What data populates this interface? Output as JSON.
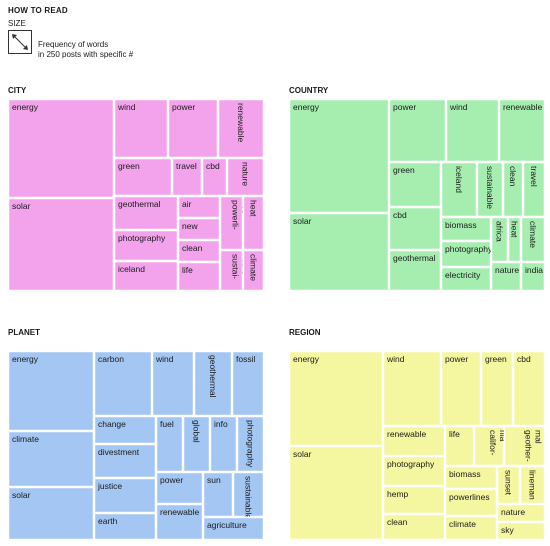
{
  "legend": {
    "title": "HOW TO READ",
    "size_label": "SIZE",
    "description": [
      "Frequency of words",
      "in 250 posts with specific #"
    ]
  },
  "chart_data": [
    {
      "type": "treemap",
      "title": "CITY",
      "color": "#f3a3ec",
      "value_note": "relative word frequency (approximate, read from area)",
      "items": [
        {
          "label": "energy",
          "value": 10.5
        },
        {
          "label": "solar",
          "value": 9.3
        },
        {
          "label": "wind",
          "value": 3.3
        },
        {
          "label": "power",
          "value": 3.3
        },
        {
          "label": "renewable",
          "value": 2.9
        },
        {
          "label": "green",
          "value": 2.0
        },
        {
          "label": "travel",
          "value": 1.2
        },
        {
          "label": "cbd",
          "value": 1.1
        },
        {
          "label": "nature",
          "value": 1.1
        },
        {
          "label": "geothermal",
          "value": 1.9
        },
        {
          "label": "photography",
          "value": 1.9
        },
        {
          "label": "iceland",
          "value": 1.9
        },
        {
          "label": "air",
          "value": 0.8
        },
        {
          "label": "new",
          "value": 0.8
        },
        {
          "label": "clean",
          "value": 0.8
        },
        {
          "label": "life",
          "value": 0.8
        },
        {
          "label": "powerlines",
          "value": 0.7
        },
        {
          "label": "sustainable",
          "value": 0.7
        },
        {
          "label": "heat",
          "value": 0.6
        },
        {
          "label": "climate",
          "value": 0.5
        }
      ]
    },
    {
      "type": "treemap",
      "title": "COUNTRY",
      "color": "#a6eeb0",
      "value_note": "relative word frequency (approximate, read from area)",
      "items": [
        {
          "label": "energy",
          "value": 10.5
        },
        {
          "label": "solar",
          "value": 8.0
        },
        {
          "label": "power",
          "value": 3.5
        },
        {
          "label": "wind",
          "value": 3.1
        },
        {
          "label": "renewable",
          "value": 2.7
        },
        {
          "label": "green",
          "value": 2.1
        },
        {
          "label": "cbd",
          "value": 1.8
        },
        {
          "label": "geothermal",
          "value": 1.8
        },
        {
          "label": "iceland",
          "value": 1.3
        },
        {
          "label": "sustainable",
          "value": 1.3
        },
        {
          "label": "clean",
          "value": 1.0
        },
        {
          "label": "travel",
          "value": 0.9
        },
        {
          "label": "biomass",
          "value": 1.3
        },
        {
          "label": "photography",
          "value": 1.3
        },
        {
          "label": "electricity",
          "value": 1.0
        },
        {
          "label": "africa",
          "value": 0.7
        },
        {
          "label": "heat",
          "value": 0.7
        },
        {
          "label": "climate",
          "value": 0.7
        },
        {
          "label": "nature",
          "value": 0.8
        },
        {
          "label": "india",
          "value": 0.6
        }
      ]
    },
    {
      "type": "treemap",
      "title": "PLANET",
      "color": "#a3c6f2",
      "value_note": "relative word frequency (approximate, read from area)",
      "items": [
        {
          "label": "energy",
          "value": 6.5
        },
        {
          "label": "climate",
          "value": 4.7
        },
        {
          "label": "solar",
          "value": 6.0
        },
        {
          "label": "carbon",
          "value": 4.5
        },
        {
          "label": "wind",
          "value": 3.0
        },
        {
          "label": "geothermal",
          "value": 2.5
        },
        {
          "label": "fossil",
          "value": 2.5
        },
        {
          "label": "change",
          "value": 1.9
        },
        {
          "label": "divestment",
          "value": 1.9
        },
        {
          "label": "justice",
          "value": 1.9
        },
        {
          "label": "earth",
          "value": 1.9
        },
        {
          "label": "fuel",
          "value": 1.1
        },
        {
          "label": "global",
          "value": 1.1
        },
        {
          "label": "info",
          "value": 1.1
        },
        {
          "label": "photography",
          "value": 1.1
        },
        {
          "label": "power",
          "value": 1.1
        },
        {
          "label": "renewable",
          "value": 1.2
        },
        {
          "label": "sun",
          "value": 1.0
        },
        {
          "label": "sustainable",
          "value": 1.0
        },
        {
          "label": "agriculture",
          "value": 1.0
        }
      ]
    },
    {
      "type": "treemap",
      "title": "REGION",
      "color": "#f4f79f",
      "value_note": "relative word frequency (approximate, read from area)",
      "items": [
        {
          "label": "energy",
          "value": 9.2
        },
        {
          "label": "solar",
          "value": 9.2
        },
        {
          "label": "wind",
          "value": 4.6
        },
        {
          "label": "power",
          "value": 2.9
        },
        {
          "label": "green",
          "value": 2.2
        },
        {
          "label": "cbd",
          "value": 1.9
        },
        {
          "label": "renewable",
          "value": 2.0
        },
        {
          "label": "photography",
          "value": 2.0
        },
        {
          "label": "hemp",
          "value": 2.0
        },
        {
          "label": "clean",
          "value": 2.0
        },
        {
          "label": "life",
          "value": 1.3
        },
        {
          "label": "california",
          "value": 1.3
        },
        {
          "label": "geothermal",
          "value": 1.1
        },
        {
          "label": "biomass",
          "value": 1.5
        },
        {
          "label": "powerlines",
          "value": 1.5
        },
        {
          "label": "climate",
          "value": 1.5
        },
        {
          "label": "sunset",
          "value": 0.7
        },
        {
          "label": "lineman",
          "value": 1.1
        },
        {
          "label": "nature",
          "value": 0.8
        },
        {
          "label": "sky",
          "value": 0.8
        }
      ]
    }
  ]
}
